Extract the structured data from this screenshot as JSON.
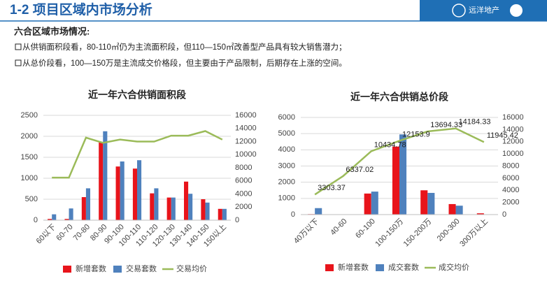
{
  "header": {
    "title": "1-2 项目区域内市场分析",
    "brand": "远洋地产"
  },
  "section": {
    "heading": "六合区域市场情况:",
    "bullets": [
      "从供销面积段看，80-110㎡仍为主流面积段，但110—150㎡改善型产品具有较大销售潜力；",
      "从总价段看，100—150万是主流成交价格段，但主要由于产品限制，后期存在上涨的空间。"
    ]
  },
  "chart_data": [
    {
      "type": "combo",
      "title": "近一年六合供销面积段",
      "categories": [
        "60以下",
        "60-70",
        "70-80",
        "80-90",
        "90-100",
        "100-110",
        "110-120",
        "120-130",
        "130-140",
        "140-150",
        "150以上"
      ],
      "series": [
        {
          "name": "新增套数",
          "color": "#e8141b",
          "type": "bar",
          "values": [
            30,
            30,
            550,
            1850,
            1280,
            1230,
            640,
            540,
            920,
            500,
            270
          ]
        },
        {
          "name": "交易套数",
          "color": "#4f81bd",
          "type": "bar",
          "values": [
            140,
            280,
            760,
            2120,
            1400,
            1430,
            760,
            540,
            630,
            420,
            270
          ]
        },
        {
          "name": "交易均价",
          "color": "#9bbb59",
          "type": "line",
          "axis": "y2",
          "values": [
            6500,
            6500,
            12600,
            11800,
            12300,
            12000,
            12000,
            12900,
            12900,
            13600,
            12300
          ]
        }
      ],
      "ylim": [
        0,
        2500
      ],
      "yticks": [
        0,
        500,
        1000,
        1500,
        2000,
        2500
      ],
      "y2lim": [
        0,
        16000
      ],
      "y2ticks": [
        0,
        2000,
        4000,
        6000,
        8000,
        10000,
        12000,
        14000,
        16000
      ],
      "grid": true
    },
    {
      "type": "combo",
      "title": "近一年六合供销总价段",
      "categories": [
        "40万以下",
        "40-60",
        "60-100",
        "100-150万",
        "150-200万",
        "200-300",
        "300万以上"
      ],
      "series": [
        {
          "name": "新增套数",
          "color": "#e8141b",
          "type": "bar",
          "values": [
            30,
            0,
            1300,
            4200,
            1500,
            650,
            80
          ]
        },
        {
          "name": "成交套数",
          "color": "#4f81bd",
          "type": "bar",
          "values": [
            400,
            0,
            1420,
            4950,
            1340,
            550,
            0
          ]
        },
        {
          "name": "成交均价",
          "color": "#9bbb59",
          "type": "line",
          "axis": "y2",
          "data_labels": true,
          "values": [
            3303.37,
            6337.02,
            10434.78,
            12153.9,
            13694.33,
            14184.33,
            11945.42
          ]
        }
      ],
      "ylim": [
        0,
        6000
      ],
      "yticks": [
        0,
        1000,
        2000,
        3000,
        4000,
        5000,
        6000
      ],
      "y2lim": [
        0,
        16000
      ],
      "y2ticks": [
        0,
        2000,
        4000,
        6000,
        8000,
        10000,
        12000,
        14000,
        16000
      ],
      "grid": true
    }
  ]
}
